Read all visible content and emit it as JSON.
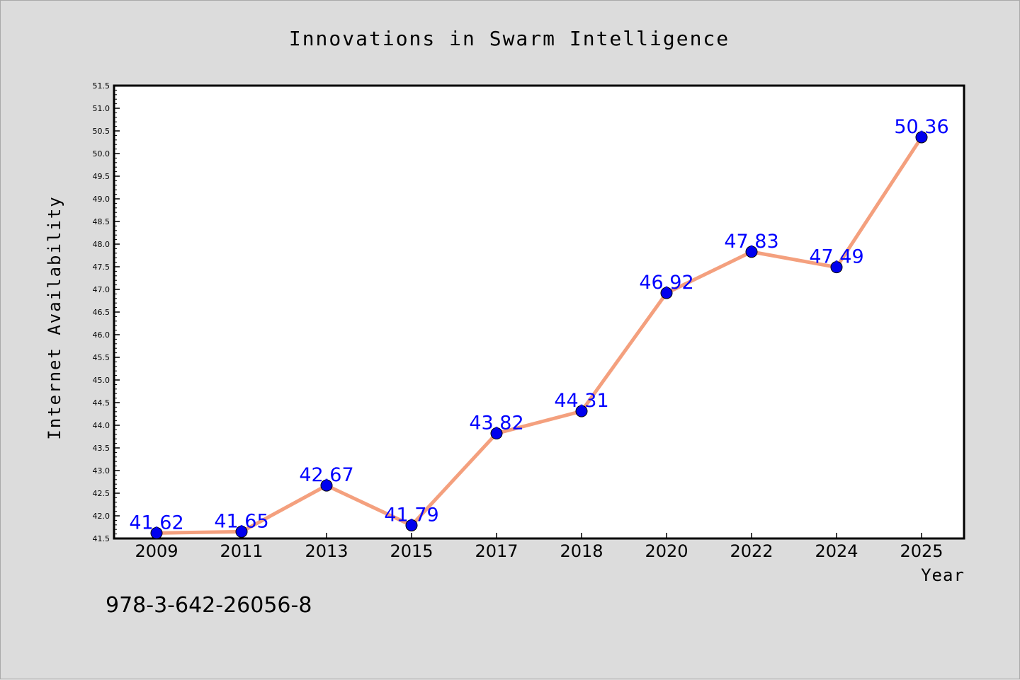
{
  "chart_data": {
    "type": "line",
    "title": "Innovations in Swarm Intelligence",
    "xlabel": "Year",
    "ylabel": "Internet Availability",
    "categories": [
      "2009",
      "2011",
      "2013",
      "2015",
      "2017",
      "2018",
      "2020",
      "2022",
      "2024",
      "2025"
    ],
    "series": [
      {
        "values": [
          41.62,
          41.65,
          42.67,
          41.79,
          43.82,
          44.31,
          46.92,
          47.83,
          47.49,
          50.36
        ],
        "labels": [
          "41.62",
          "41.65",
          "42.67",
          "41.79",
          "43.82",
          "44.31",
          "46.92",
          "47.83",
          "47.49",
          "50.36"
        ]
      }
    ],
    "ylim": [
      41.5,
      51.5
    ],
    "yticks": [
      "41.5",
      "42.0",
      "42.5",
      "43.0",
      "43.5",
      "44.0",
      "44.5",
      "45.0",
      "45.5",
      "46.0",
      "46.5",
      "47.0",
      "47.5",
      "48.0",
      "48.5",
      "49.0",
      "49.5",
      "50.0",
      "50.5",
      "51.0",
      "51.5"
    ],
    "grid": false,
    "colors": {
      "line": "#f4a07e",
      "marker": "#0000ee",
      "label": "#0000ff",
      "background": "#dcdcdc",
      "plot_background": "#ffffff"
    }
  },
  "footer": {
    "code": "978-3-642-26056-8"
  }
}
